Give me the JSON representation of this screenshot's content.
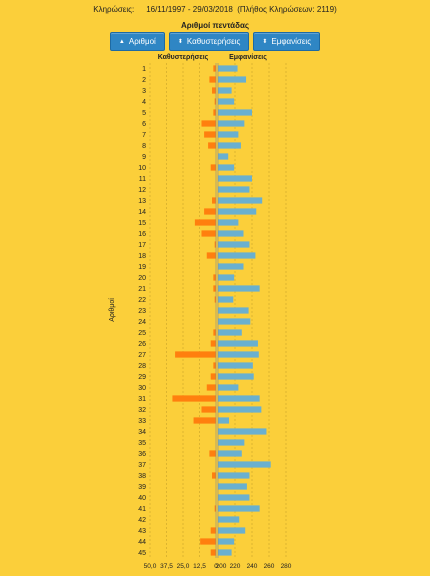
{
  "header": {
    "label": "Κληρώσεις:",
    "range": "16/11/1997 - 29/03/2018",
    "count": "(Πλήθος Κληρώσεων: 2119)"
  },
  "title": "Αριθμοί πεντάδας",
  "toolbar": {
    "buttons": [
      {
        "label": "Αριθμοί",
        "icon": "caret-up-icon"
      },
      {
        "label": "Καθυστερήσεις",
        "icon": "sort-icon"
      },
      {
        "label": "Εμφανίσεις",
        "icon": "sort-icon"
      }
    ]
  },
  "colors": {
    "background": "#fbcf3a",
    "delays": "#ff7f0e",
    "appearances": "#6ab0cf",
    "button": "#2f86c4"
  },
  "chart_data": {
    "type": "bar",
    "orientation": "horizontal-mirrored",
    "ylabel": "Αριθμοί",
    "categories": [
      "1",
      "2",
      "3",
      "4",
      "5",
      "6",
      "7",
      "8",
      "9",
      "10",
      "11",
      "12",
      "13",
      "14",
      "15",
      "16",
      "17",
      "18",
      "19",
      "20",
      "21",
      "22",
      "23",
      "24",
      "25",
      "26",
      "27",
      "28",
      "29",
      "30",
      "31",
      "32",
      "33",
      "34",
      "35",
      "36",
      "37",
      "38",
      "39",
      "40",
      "41",
      "42",
      "43",
      "44",
      "45"
    ],
    "series": [
      {
        "name": "Καθυστερήσεις",
        "side": "left",
        "xlim": [
          0,
          50
        ],
        "ticks": [
          "50,0",
          "37,5",
          "25,0",
          "12,5",
          "0"
        ],
        "values": [
          2,
          5,
          3,
          1,
          2,
          11,
          9,
          6,
          0,
          4,
          0,
          0,
          3,
          9,
          16,
          11,
          1,
          7,
          0,
          2,
          2,
          1,
          0,
          0,
          2,
          4,
          31,
          2,
          4,
          7,
          33,
          11,
          17,
          0,
          0,
          5,
          0,
          3,
          0,
          0,
          1,
          0,
          4,
          12,
          4
        ]
      },
      {
        "name": "Εμφανίσεις",
        "side": "right",
        "xlim": [
          200,
          280
        ],
        "ticks": [
          "200",
          "220",
          "240",
          "260",
          "280"
        ],
        "values": [
          223,
          233,
          216,
          219,
          240,
          231,
          224,
          227,
          212,
          219,
          240,
          237,
          252,
          245,
          224,
          230,
          237,
          244,
          230,
          219,
          249,
          218,
          236,
          238,
          228,
          247,
          248,
          241,
          242,
          224,
          249,
          251,
          213,
          257,
          231,
          228,
          262,
          237,
          234,
          237,
          249,
          225,
          232,
          219,
          216
        ]
      }
    ]
  }
}
